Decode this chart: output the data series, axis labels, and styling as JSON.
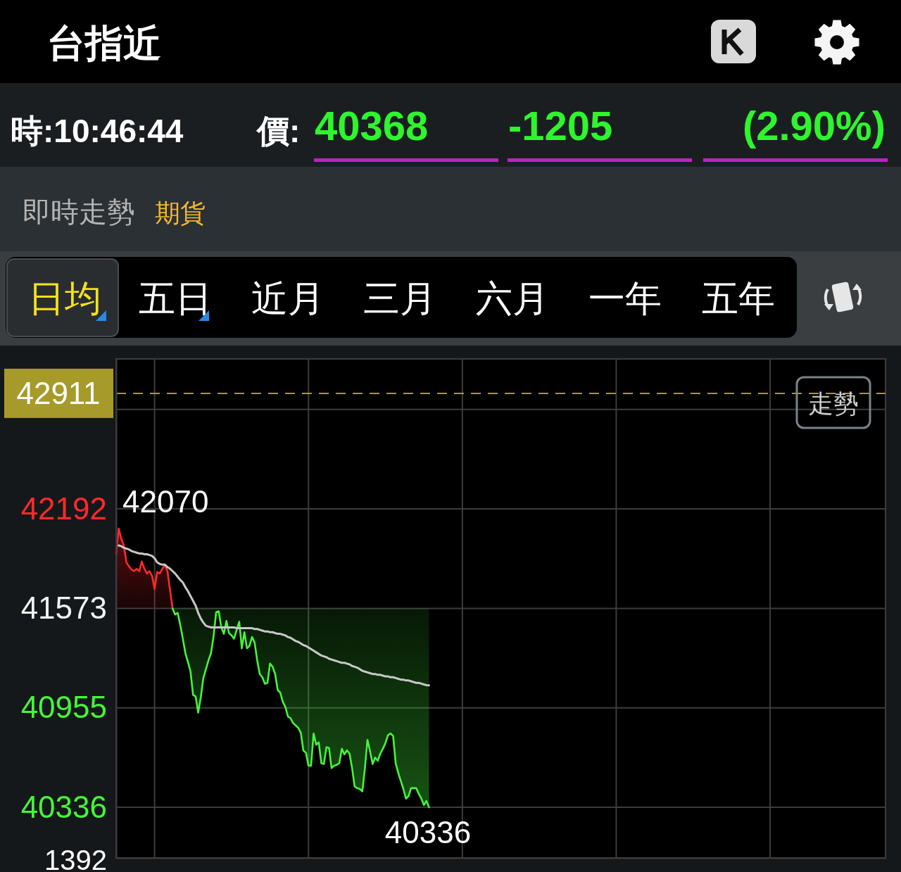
{
  "chart_data": {
    "type": "area",
    "title": "台指近",
    "subtitle": "即時走勢",
    "annotations": [
      "時:10:46:44",
      "價:",
      "40368",
      "-1205",
      "(2.90%)",
      "期貨",
      "日均",
      "五日",
      "近月",
      "三月",
      "六月",
      "一年",
      "五年",
      "走勢",
      "42070",
      "40336",
      "1392"
    ],
    "categories": [
      null,
      null,
      null,
      null,
      null,
      null,
      null,
      null,
      null,
      null,
      null,
      null,
      null,
      null,
      null,
      null,
      null,
      null,
      null,
      null,
      null,
      null,
      null,
      null,
      null,
      null,
      null,
      null,
      null,
      null,
      null,
      null,
      null,
      null,
      null,
      null,
      null,
      null,
      null,
      null,
      null,
      null,
      null,
      null,
      null,
      null,
      null,
      null,
      null,
      null,
      null,
      null,
      null,
      null,
      null,
      null,
      null,
      null,
      null,
      null,
      null,
      null,
      null,
      null,
      null,
      null,
      null,
      null,
      null,
      null,
      null,
      null,
      null,
      null,
      null,
      null,
      null,
      null,
      null,
      null,
      null,
      null,
      null,
      null,
      null,
      null,
      null,
      null,
      null,
      null,
      null,
      null,
      null,
      null,
      null,
      null,
      null,
      null,
      null,
      null,
      null,
      null,
      null,
      null,
      null,
      null,
      null,
      null,
      null,
      null,
      null,
      null,
      null,
      null,
      null,
      null,
      null,
      null,
      null,
      null,
      null,
      null,
      null,
      null,
      null,
      null,
      null,
      null,
      null,
      null,
      null,
      null,
      null,
      null,
      null,
      null,
      null,
      null,
      null,
      null,
      null,
      null,
      null,
      null,
      null,
      null,
      null,
      null,
      null,
      null,
      null,
      null,
      null,
      null,
      null,
      null,
      null,
      null,
      null,
      null,
      null,
      null,
      null,
      null,
      null,
      null,
      null,
      null,
      null,
      null,
      null,
      null,
      null,
      null,
      null,
      null,
      null,
      null,
      null,
      null,
      null,
      null,
      null,
      null,
      null,
      null,
      null,
      null,
      null,
      null,
      null,
      null,
      null,
      null,
      null,
      null,
      null,
      null,
      null,
      null,
      null,
      null,
      null,
      null,
      null,
      null,
      null,
      null,
      null,
      null,
      null,
      null,
      null,
      null,
      null,
      null,
      null,
      null,
      null,
      null,
      null,
      null,
      null,
      null,
      null,
      null,
      null,
      null,
      null,
      null,
      null,
      null,
      null,
      null,
      null,
      null,
      null,
      null,
      null,
      null,
      null,
      null,
      null,
      null,
      null,
      null,
      null,
      null,
      null,
      null,
      null,
      null,
      null,
      null,
      null,
      null,
      null,
      null,
      null,
      null,
      null,
      null,
      null,
      null,
      null,
      null,
      null,
      null,
      null,
      null,
      null,
      null,
      null,
      null,
      null,
      null,
      null,
      null,
      null,
      null,
      null,
      null,
      null,
      null,
      null,
      null,
      null,
      null,
      null,
      null,
      null,
      null,
      null,
      null,
      null,
      null,
      null,
      null,
      null,
      null,
      null
    ],
    "ylim": [
      40021,
      43125
    ],
    "yticks": [
      40336,
      40955,
      41573,
      42192,
      {
        "value": 42811,
        "label": null
      }
    ],
    "grid": true,
    "tick_labels": "y",
    "ref_lines": [
      {
        "axis": "y",
        "value": 42911,
        "label": "42911",
        "color": "#a69a2a",
        "line_style": "dashed"
      }
    ],
    "series": [
      {
        "color": "#ff2a2a",
        "values": [
          41910,
          42070,
          42005,
          41965,
          41860,
          41835,
          41815,
          41805,
          41820,
          41805,
          41865,
          41820,
          41790,
          41805,
          41775,
          41695,
          41800,
          41790,
          41820,
          41845,
          41805,
          41690,
          41573,
          null,
          null,
          null,
          null,
          null,
          null,
          null,
          null,
          null,
          null,
          null,
          null,
          null,
          null,
          null,
          null,
          null,
          null,
          null,
          null,
          null,
          null,
          null,
          null,
          null,
          null,
          null,
          null,
          null,
          null,
          null,
          null,
          null,
          null,
          null,
          null,
          null,
          null,
          null,
          null,
          null,
          null,
          null,
          null,
          null,
          null,
          null,
          null,
          null,
          null,
          null,
          null,
          null,
          null,
          null,
          null,
          null,
          null,
          null,
          null,
          null,
          null,
          null,
          null,
          null,
          null,
          null,
          null,
          null,
          null,
          null,
          null,
          null,
          null,
          null,
          null,
          null,
          null,
          null,
          null,
          null,
          null,
          null,
          null,
          null,
          null,
          null,
          null,
          null,
          null,
          null,
          null,
          null,
          null,
          null,
          null,
          null,
          null,
          null,
          null,
          null,
          null,
          null,
          null,
          null,
          null,
          null,
          null,
          null,
          null,
          null,
          null,
          null,
          null,
          null,
          null,
          null,
          null,
          null,
          null,
          null,
          null,
          null,
          null,
          null,
          null,
          null,
          null,
          null,
          null,
          null,
          null,
          null,
          null,
          null,
          null,
          null,
          null,
          null,
          null,
          null,
          null,
          null,
          null,
          null,
          null,
          null,
          null,
          null,
          null,
          null,
          null,
          null,
          null,
          null,
          null,
          null,
          null,
          null,
          null,
          null,
          null,
          null,
          null,
          null,
          null,
          null,
          null,
          null,
          null,
          null,
          null,
          null,
          null,
          null,
          null,
          null,
          null,
          null,
          null,
          null,
          null,
          null,
          null,
          null,
          null,
          null,
          null,
          null,
          null,
          null,
          null,
          null,
          null,
          null,
          null,
          null,
          null,
          null,
          null,
          null,
          null,
          null,
          null,
          null,
          null,
          null,
          null,
          null,
          null,
          null,
          null,
          null,
          null,
          null,
          null,
          null,
          null,
          null,
          null,
          null,
          null,
          null,
          null,
          null,
          null,
          null,
          null,
          null,
          null,
          null,
          null,
          null,
          null,
          null,
          null,
          null,
          null,
          null,
          null,
          null,
          null,
          null,
          null,
          null,
          null,
          null,
          null,
          null,
          null,
          null,
          null,
          null,
          null,
          null,
          null,
          null,
          null,
          null,
          null,
          null,
          null,
          null,
          null,
          null,
          null,
          null,
          null,
          null,
          null,
          null,
          null,
          null,
          null,
          null,
          null,
          null,
          null
        ]
      },
      {
        "type": "line",
        "color": "#45f53a",
        "values": [
          null,
          null,
          null,
          null,
          null,
          null,
          null,
          null,
          null,
          null,
          null,
          null,
          null,
          null,
          null,
          null,
          null,
          null,
          null,
          null,
          null,
          null,
          41573,
          41535,
          41545,
          41470,
          41385,
          41295,
          41240,
          41180,
          41035,
          41025,
          40925,
          41020,
          41140,
          41195,
          41250,
          41295,
          41400,
          41550,
          41555,
          41455,
          41415,
          41495,
          41420,
          41405,
          41385,
          41440,
          41490,
          41325,
          41425,
          41325,
          41340,
          41395,
          41360,
          41250,
          41165,
          41145,
          41105,
          41110,
          41230,
          41210,
          41165,
          41065,
          41050,
          40990,
          40960,
          40900,
          40890,
          40860,
          40845,
          40830,
          40800,
          40690,
          40675,
          40595,
          40595,
          40795,
          40725,
          40740,
          40610,
          40605,
          40710,
          40705,
          40580,
          40595,
          40600,
          40610,
          40700,
          40665,
          40690,
          40670,
          40580,
          40465,
          40455,
          40450,
          40435,
          40580,
          40755,
          40685,
          40605,
          40645,
          40625,
          40670,
          40700,
          40735,
          40785,
          40795,
          40780,
          40610,
          40550,
          40500,
          40450,
          40390,
          40405,
          40455,
          40455,
          40455,
          40420,
          40390,
          40350,
          40375,
          40336,
          null,
          null,
          null,
          null,
          null,
          null,
          null,
          null,
          null,
          null,
          null,
          null,
          null,
          null,
          null,
          null,
          null,
          null,
          null,
          null,
          null,
          null,
          null,
          null,
          null,
          null,
          null,
          null,
          null,
          null,
          null,
          null,
          null,
          null,
          null,
          null,
          null,
          null,
          null,
          null,
          null,
          null,
          null,
          null,
          null,
          null,
          null,
          null,
          null,
          null,
          null,
          null,
          null,
          null,
          null,
          null,
          null,
          null,
          null,
          null,
          null,
          null,
          null,
          null,
          null,
          null,
          null,
          null,
          null,
          null,
          null,
          null,
          null,
          null,
          null,
          null,
          null,
          null,
          null,
          null,
          null,
          null,
          null,
          null,
          null,
          null,
          null,
          null,
          null,
          null,
          null,
          null,
          null,
          null,
          null,
          null,
          null,
          null,
          null,
          null,
          null,
          null,
          null,
          null,
          null,
          null,
          null,
          null,
          null,
          null,
          null,
          null,
          null,
          null,
          null,
          null,
          null,
          null,
          null,
          null,
          null,
          null,
          null,
          null,
          null,
          null,
          null,
          null,
          null,
          null,
          null,
          null,
          null,
          null,
          null,
          null,
          null,
          null,
          null,
          null,
          null,
          null,
          null,
          null,
          null,
          null,
          null,
          null,
          null,
          null,
          null,
          null,
          null,
          null,
          null,
          null,
          null,
          null,
          null,
          null,
          null,
          null,
          null,
          null,
          null,
          null,
          null,
          null,
          null,
          null,
          null,
          null,
          null,
          null,
          null,
          null,
          null,
          null
        ],
        "lower": [
          null,
          null,
          null,
          null,
          null,
          null,
          null,
          null,
          null,
          null,
          null,
          null,
          null,
          null,
          null,
          null,
          null,
          null,
          null,
          null,
          null,
          null,
          41573,
          41535,
          41545,
          41470,
          41385,
          41295,
          41240,
          41180,
          41035,
          41025,
          40925,
          41020,
          41140,
          41195,
          41250,
          41295,
          41400,
          41550,
          41555,
          41455,
          41415,
          41495,
          41420,
          41405,
          41385,
          41440,
          41490,
          41325,
          41425,
          41325,
          41340,
          41395,
          41360,
          41250,
          41165,
          41145,
          41105,
          41110,
          41230,
          41210,
          41165,
          41065,
          41050,
          40990,
          40960,
          40900,
          40890,
          40860,
          40845,
          40830,
          40800,
          40690,
          40675,
          40595,
          40595,
          40795,
          40725,
          40740,
          40610,
          40605,
          40710,
          40705,
          40580,
          40595,
          40600,
          40610,
          40700,
          40665,
          40690,
          40670,
          40580,
          40465,
          40455,
          40450,
          40435,
          40580,
          40755,
          40685,
          40605,
          40645,
          40625,
          40670,
          40700,
          40735,
          40785,
          40795,
          40780,
          40610,
          40550,
          40500,
          40450,
          40390,
          40405,
          40455,
          40455,
          40455,
          40420,
          40390,
          40350,
          40375,
          40336,
          null,
          null,
          null,
          null,
          null,
          null,
          null,
          null,
          null,
          null,
          null,
          null,
          null,
          null,
          null,
          null,
          null,
          null,
          null,
          null,
          null,
          null,
          null,
          null,
          null,
          null,
          null,
          null,
          null,
          null,
          null,
          null,
          null,
          null,
          null,
          null,
          null,
          null,
          null,
          null,
          null,
          null,
          null,
          null,
          null,
          null,
          null,
          null,
          null,
          null,
          null,
          null,
          null,
          null,
          null,
          null,
          null,
          null,
          null,
          null,
          null,
          null,
          null,
          null,
          null,
          null,
          null,
          null,
          null,
          null,
          null,
          null,
          null,
          null,
          null,
          null,
          null,
          null,
          null,
          null,
          null,
          null,
          null,
          null,
          null,
          null,
          null,
          null,
          null,
          null,
          null,
          null,
          null,
          null,
          null,
          null,
          null,
          null,
          null,
          null,
          null,
          null,
          null,
          null,
          null,
          null,
          null,
          null,
          null,
          null,
          null,
          null,
          null,
          null,
          null,
          null,
          null,
          null,
          null,
          null,
          null,
          null,
          null,
          null,
          null,
          null,
          null,
          null,
          null,
          null,
          null,
          null,
          null,
          null,
          null,
          null,
          null,
          null,
          null,
          null,
          null,
          null,
          null,
          null,
          null,
          null,
          null,
          null,
          null,
          null,
          null,
          null,
          null,
          null,
          null,
          null,
          null,
          null,
          null,
          null,
          null,
          null,
          null,
          null,
          null,
          null,
          null,
          null,
          null,
          null,
          null,
          null,
          null,
          null,
          null,
          null,
          null,
          null
        ],
        "upper": [
          null,
          null,
          null,
          null,
          null,
          null,
          null,
          null,
          null,
          null,
          null,
          null,
          null,
          null,
          null,
          null,
          null,
          null,
          null,
          null,
          null,
          null,
          41573,
          41573,
          41573,
          41573,
          41573,
          41573,
          41573,
          41573,
          41573,
          41573,
          41573,
          41573,
          41573,
          41573,
          41573,
          41573,
          41573,
          41573,
          41573,
          41573,
          41573,
          41573,
          41573,
          41573,
          41573,
          41573,
          41573,
          41573,
          41573,
          41573,
          41573,
          41573,
          41573,
          41573,
          41573,
          41573,
          41573,
          41573,
          41573,
          41573,
          41573,
          41573,
          41573,
          41573,
          41573,
          41573,
          41573,
          41573,
          41573,
          41573,
          41573,
          41573,
          41573,
          41573,
          41573,
          41573,
          41573,
          41573,
          41573,
          41573,
          41573,
          41573,
          41573,
          41573,
          41573,
          41573,
          41573,
          41573,
          41573,
          41573,
          41573,
          41573,
          41573,
          41573,
          41573,
          41573,
          41573,
          41573,
          41573,
          41573,
          41573,
          41573,
          41573,
          41573,
          41573,
          41573,
          41573,
          41573,
          41573,
          41573,
          41573,
          41573,
          41573,
          41573,
          41573,
          41573,
          41573,
          41573,
          41573,
          41573,
          41573,
          null,
          null,
          null,
          null,
          null,
          null,
          null,
          null,
          null,
          null,
          null,
          null,
          null,
          null,
          null,
          null,
          null,
          null,
          null,
          null,
          null,
          null,
          null,
          null,
          null,
          null,
          null,
          null,
          null,
          null,
          null,
          null,
          null,
          null,
          null,
          null,
          null,
          null,
          null,
          null,
          null,
          null,
          null,
          null,
          null,
          null,
          null,
          null,
          null,
          null,
          null,
          null,
          null,
          null,
          null,
          null,
          null,
          null,
          null,
          null,
          null,
          null,
          null,
          null,
          null,
          null,
          null,
          null,
          null,
          null,
          null,
          null,
          null,
          null,
          null,
          null,
          null,
          null,
          null,
          null,
          null,
          null,
          null,
          null,
          null,
          null,
          null,
          null,
          null,
          null,
          null,
          null,
          null,
          null,
          null,
          null,
          null,
          null,
          null,
          null,
          null,
          null,
          null,
          null,
          null,
          null,
          null,
          null,
          null,
          null,
          null,
          null,
          null,
          null,
          null,
          null,
          null,
          null,
          null,
          null,
          null,
          null,
          null,
          null,
          null,
          null,
          null,
          null,
          null,
          null,
          null,
          null,
          null,
          null,
          null,
          null,
          null,
          null,
          null,
          null,
          null,
          null,
          null,
          null,
          null,
          null,
          null,
          null,
          null,
          null,
          null,
          null,
          null,
          null,
          null,
          null,
          null,
          null,
          null,
          null,
          null,
          null,
          null,
          null,
          null,
          null,
          null,
          null,
          null,
          null,
          null,
          null,
          null,
          null,
          null,
          null,
          null,
          null
        ]
      },
      {
        "type": "line",
        "color": "#c8c8c8",
        "values": [
          null,
          41965,
          41960,
          41950,
          41945,
          41940,
          41930,
          41925,
          41920,
          41915,
          41915,
          41910,
          41910,
          41905,
          41900,
          41885,
          41860,
          41850,
          41845,
          41845,
          41830,
          41820,
          41805,
          41790,
          41770,
          41750,
          41735,
          41705,
          41680,
          41650,
          41620,
          41590,
          41545,
          41510,
          41485,
          41465,
          41460,
          41455,
          41455,
          41455,
          41455,
          41455,
          41455,
          41455,
          41455,
          41455,
          41455,
          41450,
          41450,
          41450,
          41450,
          41450,
          41450,
          41450,
          41445,
          41445,
          41440,
          41435,
          41430,
          41430,
          41425,
          41425,
          41420,
          41415,
          41415,
          41410,
          41405,
          41395,
          41390,
          41380,
          41370,
          41365,
          41355,
          41345,
          41340,
          41330,
          41320,
          41310,
          41300,
          41290,
          41280,
          41275,
          41270,
          41260,
          41255,
          41250,
          41245,
          41240,
          41235,
          41235,
          41230,
          41225,
          41215,
          41210,
          41205,
          41195,
          41185,
          41180,
          41175,
          41170,
          41165,
          41165,
          41160,
          41160,
          41155,
          41150,
          41150,
          41145,
          41145,
          41140,
          41135,
          41130,
          41130,
          41125,
          41125,
          41120,
          41115,
          41110,
          41110,
          41105,
          41100,
          41095,
          41095,
          null,
          null,
          null,
          null,
          null,
          null,
          null,
          null,
          null,
          null,
          null,
          null,
          null,
          null,
          null,
          null,
          null,
          null,
          null,
          null,
          null,
          null,
          null,
          null,
          null,
          null,
          null,
          null,
          null,
          null,
          null,
          null,
          null,
          null,
          null,
          null,
          null,
          null,
          null,
          null,
          null,
          null,
          null,
          null,
          null,
          null,
          null,
          null,
          null,
          null,
          null,
          null,
          null,
          null,
          null,
          null,
          null,
          null,
          null,
          null,
          null,
          null,
          null,
          null,
          null,
          null,
          null,
          null,
          null,
          null,
          null,
          null,
          null,
          null,
          null,
          null,
          null,
          null,
          null,
          null,
          null,
          null,
          null,
          null,
          null,
          null,
          null,
          null,
          null,
          null,
          null,
          null,
          null,
          null,
          null,
          null,
          null,
          null,
          null,
          null,
          null,
          null,
          null,
          null,
          null,
          null,
          null,
          null,
          null,
          null,
          null,
          null,
          null,
          null,
          null,
          null,
          null,
          null,
          null,
          null,
          null,
          null,
          null,
          null,
          null,
          null,
          null,
          null,
          null,
          null,
          null,
          null,
          null,
          null,
          null,
          null,
          null,
          null,
          null,
          null,
          null,
          null,
          null,
          null,
          null,
          null,
          null,
          null,
          null,
          null,
          null,
          null,
          null,
          null,
          null,
          null,
          null,
          null,
          null,
          null,
          null,
          null,
          null,
          null,
          null,
          null,
          null,
          null,
          null,
          null,
          null,
          null,
          null,
          null,
          null,
          null,
          null,
          null
        ]
      }
    ]
  }
}
